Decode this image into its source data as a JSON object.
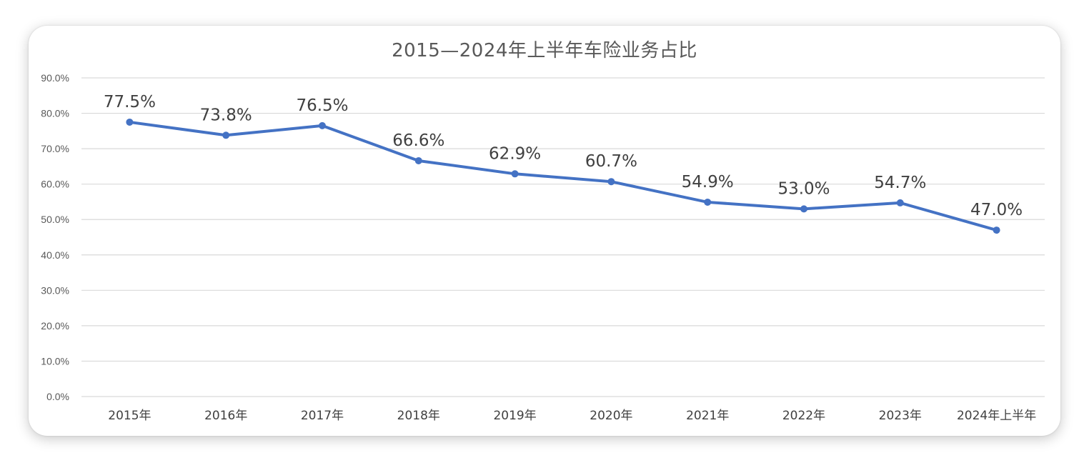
{
  "chart_data": {
    "type": "line",
    "title": "2015—2024年上半年车险业务占比",
    "categories": [
      "2015年",
      "2016年",
      "2017年",
      "2018年",
      "2019年",
      "2020年",
      "2021年",
      "2022年",
      "2023年",
      "2024年上半年"
    ],
    "series": [
      {
        "values": [
          77.5,
          73.8,
          76.5,
          66.6,
          62.9,
          60.7,
          54.9,
          53.0,
          54.7,
          47.0
        ],
        "labels": [
          "77.5%",
          "73.8%",
          "76.5%",
          "66.6%",
          "62.9%",
          "60.7%",
          "54.9%",
          "53.0%",
          "54.7%",
          "47.0%"
        ],
        "color": "#4472C4"
      }
    ],
    "yticks": [
      "0.0%",
      "10.0%",
      "20.0%",
      "30.0%",
      "40.0%",
      "50.0%",
      "60.0%",
      "70.0%",
      "80.0%",
      "90.0%"
    ],
    "ylim": [
      0,
      90
    ],
    "grid": true,
    "legend": "none",
    "xlabel": "",
    "ylabel": ""
  }
}
